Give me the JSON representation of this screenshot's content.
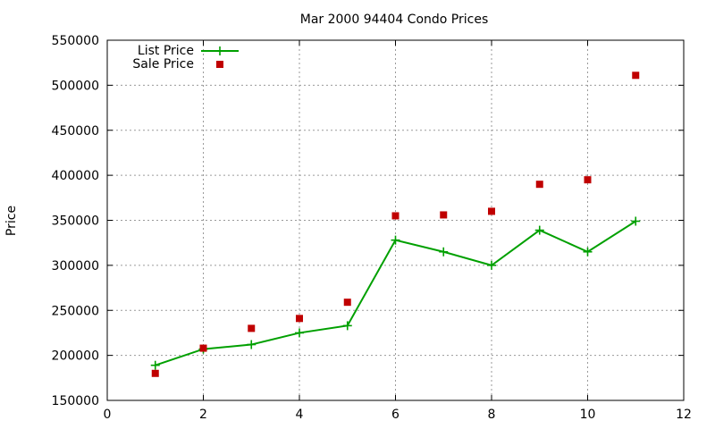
{
  "chart_data": {
    "type": "line",
    "title": "Mar 2000 94404 Condo Prices",
    "xlabel": "",
    "ylabel": "Price",
    "xlim": [
      0,
      12
    ],
    "ylim": [
      150000,
      550000
    ],
    "x_ticks": [
      0,
      2,
      4,
      6,
      8,
      10,
      12
    ],
    "y_ticks": [
      150000,
      200000,
      250000,
      300000,
      350000,
      400000,
      450000,
      500000,
      550000
    ],
    "grid": true,
    "legend_position": "top-left",
    "series": [
      {
        "name": "List Price",
        "style": "line-with-plus-markers",
        "color": "#00a000",
        "x": [
          1,
          2,
          3,
          4,
          5,
          6,
          7,
          8,
          9,
          10,
          11
        ],
        "y": [
          189000,
          207000,
          212000,
          225000,
          233000,
          328000,
          315000,
          300000,
          339000,
          315000,
          349000
        ]
      },
      {
        "name": "Sale Price",
        "style": "square-markers",
        "color": "#c00000",
        "x": [
          1,
          2,
          3,
          4,
          5,
          6,
          7,
          8,
          9,
          10,
          11
        ],
        "y": [
          180000,
          208000,
          230000,
          241000,
          259000,
          355000,
          356000,
          360000,
          390000,
          395000,
          511000
        ]
      }
    ]
  }
}
